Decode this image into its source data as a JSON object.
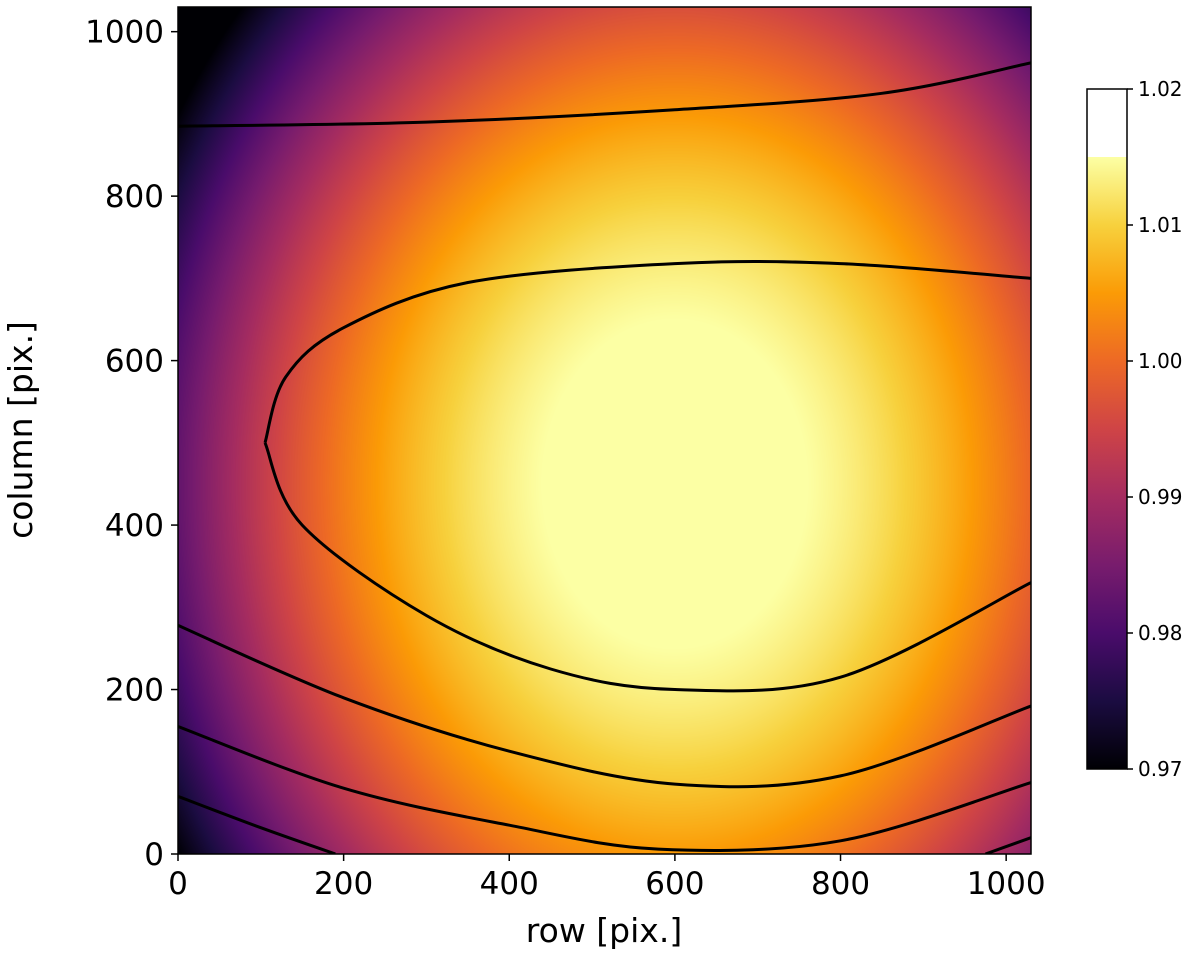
{
  "chart_data": {
    "type": "heatmap",
    "title": "",
    "xlabel": "row [pix.]",
    "ylabel": "column [pix.]",
    "xlim": [
      0,
      1030
    ],
    "ylim": [
      0,
      1030
    ],
    "x_ticks": [
      0,
      200,
      400,
      600,
      800,
      1000
    ],
    "y_ticks": [
      0,
      200,
      400,
      600,
      800,
      1000
    ],
    "x_tick_labels": [
      "0",
      "200",
      "400",
      "600",
      "800",
      "1000"
    ],
    "y_tick_labels": [
      "0",
      "200",
      "400",
      "600",
      "800",
      "1000"
    ],
    "colormap": "inferno",
    "colorbar": {
      "range": [
        0.97,
        1.02
      ],
      "ticks": [
        0.97,
        0.98,
        0.99,
        1.0,
        1.01,
        1.02
      ],
      "tick_labels": [
        "0.97",
        "0.98",
        "0.99",
        "1.00",
        "1.01",
        "1.02"
      ],
      "position": "right"
    },
    "surface": {
      "peak_value": 1.0175,
      "peak_row": 600,
      "peak_column": 450,
      "value_at_origin": 0.97,
      "value_at_top_center": 0.9965
    },
    "contours": [
      {
        "level": 1.0142,
        "points": [
          [
            105,
            500
          ],
          [
            130,
            580
          ],
          [
            200,
            640
          ],
          [
            350,
            695
          ],
          [
            600,
            718
          ],
          [
            800,
            718
          ],
          [
            1030,
            700
          ]
        ]
      },
      {
        "level": 1.0142,
        "points": [
          [
            105,
            500
          ],
          [
            150,
            400
          ],
          [
            300,
            290
          ],
          [
            450,
            225
          ],
          [
            600,
            200
          ],
          [
            800,
            215
          ],
          [
            1030,
            330
          ]
        ]
      },
      {
        "level": 1.003,
        "points": [
          [
            0,
            885
          ],
          [
            300,
            890
          ],
          [
            600,
            905
          ],
          [
            850,
            925
          ],
          [
            1030,
            962
          ]
        ]
      },
      {
        "level": 1.005,
        "points": [
          [
            0,
            278
          ],
          [
            200,
            190
          ],
          [
            400,
            125
          ],
          [
            600,
            85
          ],
          [
            800,
            95
          ],
          [
            1030,
            180
          ]
        ]
      },
      {
        "level": 0.997,
        "points": [
          [
            0,
            155
          ],
          [
            200,
            80
          ],
          [
            400,
            35
          ],
          [
            580,
            6
          ],
          [
            800,
            16
          ],
          [
            1030,
            87
          ]
        ]
      },
      {
        "level": 0.989,
        "points": [
          [
            0,
            70
          ],
          [
            100,
            32
          ],
          [
            190,
            0
          ]
        ]
      },
      {
        "level": 0.989,
        "points": [
          [
            975,
            0
          ],
          [
            1030,
            20
          ]
        ]
      }
    ],
    "grid": false
  }
}
